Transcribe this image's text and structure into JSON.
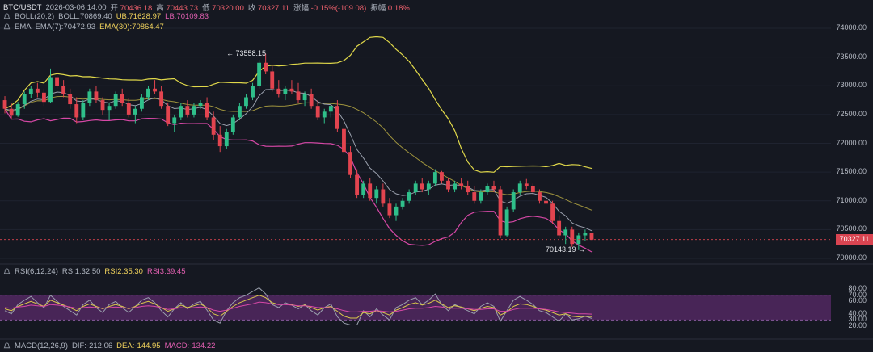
{
  "header": {
    "symbol": "BTC/USDT",
    "datetime": "2026-03-06 14:00",
    "open_label": "开",
    "open": "70436.18",
    "high_label": "高",
    "high": "70443.73",
    "low_label": "低",
    "low": "70320.00",
    "close_label": "收",
    "close": "70327.11",
    "change_label": "涨幅",
    "change": "-0.15%(-109.08)",
    "amp_label": "振幅",
    "amp": "0.18%"
  },
  "boll": {
    "label": "BOLL(20,2)",
    "boll": "BOLL:70869.40",
    "ub": "UB:71628.97",
    "lb": "LB:70109.83"
  },
  "ema": {
    "label": "EMA",
    "ema7": "EMA(7):70472.93",
    "ema30": "EMA(30):70864.47"
  },
  "rsi": {
    "label": "RSI(6,12,24)",
    "rsi1": "RSI1:32.50",
    "rsi2": "RSI2:35.30",
    "rsi3": "RSI3:39.45"
  },
  "macd": {
    "label": "MACD(12,26,9)",
    "dif": "DIF:-212.06",
    "dea": "DEA:-144.95",
    "macd": "MACD:-134.22"
  },
  "annotations": {
    "high_marker": "← 73558.15",
    "low_marker": "70143.19 →"
  },
  "last_price_tag": "70327.11",
  "colors": {
    "up": "#2fbf8a",
    "down": "#e2444f",
    "boll_band": "#e0d84a",
    "lb": "#d648a6",
    "ema7": "#9aa0ad",
    "ema30": "#d9c84a",
    "rsi_zone": "#5a2a6a",
    "background": "#151821"
  },
  "chart_data": [
    {
      "type": "candlestick",
      "title": "BTC/USDT",
      "ylim": [
        70000,
        74000
      ],
      "y_ticks": [
        "74000.00",
        "73500.00",
        "73000.00",
        "72500.00",
        "72000.00",
        "71500.00",
        "71000.00",
        "70500.00",
        "70000.00"
      ],
      "candles": [
        [
          72750,
          72820,
          72520,
          72600
        ],
        [
          72600,
          72700,
          72420,
          72480
        ],
        [
          72480,
          72720,
          72460,
          72680
        ],
        [
          72680,
          72900,
          72600,
          72850
        ],
        [
          72850,
          73000,
          72780,
          72950
        ],
        [
          72950,
          73050,
          72800,
          72880
        ],
        [
          72880,
          72950,
          72650,
          72720
        ],
        [
          72720,
          73300,
          72700,
          73150
        ],
        [
          73150,
          73250,
          72950,
          73000
        ],
        [
          73000,
          73100,
          72800,
          72850
        ],
        [
          72850,
          72950,
          72600,
          72680
        ],
        [
          72680,
          72800,
          72350,
          72450
        ],
        [
          72450,
          72750,
          72400,
          72700
        ],
        [
          72700,
          72950,
          72650,
          72900
        ],
        [
          72900,
          73000,
          72700,
          72750
        ],
        [
          72750,
          72800,
          72500,
          72580
        ],
        [
          72580,
          72700,
          72400,
          72650
        ],
        [
          72650,
          72900,
          72600,
          72850
        ],
        [
          72850,
          72950,
          72650,
          72700
        ],
        [
          72700,
          72780,
          72450,
          72500
        ],
        [
          72500,
          72650,
          72350,
          72600
        ],
        [
          72600,
          72850,
          72550,
          72800
        ],
        [
          72800,
          73000,
          72750,
          72950
        ],
        [
          72950,
          73100,
          72850,
          72900
        ],
        [
          72900,
          73000,
          72600,
          72650
        ],
        [
          72650,
          72700,
          72300,
          72350
        ],
        [
          72350,
          72500,
          72200,
          72450
        ],
        [
          72450,
          72700,
          72400,
          72650
        ],
        [
          72650,
          72750,
          72450,
          72500
        ],
        [
          72500,
          72700,
          72450,
          72650
        ],
        [
          72650,
          72750,
          72600,
          72700
        ],
        [
          72700,
          72800,
          72400,
          72450
        ],
        [
          72450,
          72550,
          72050,
          72150
        ],
        [
          72150,
          72300,
          71850,
          71950
        ],
        [
          71950,
          72250,
          71900,
          72200
        ],
        [
          72200,
          72500,
          72150,
          72450
        ],
        [
          72450,
          72700,
          72400,
          72650
        ],
        [
          72650,
          72850,
          72600,
          72800
        ],
        [
          72800,
          73050,
          72750,
          73000
        ],
        [
          73000,
          73450,
          72950,
          73400
        ],
        [
          73400,
          73558,
          73200,
          73250
        ],
        [
          73250,
          73350,
          72900,
          72950
        ],
        [
          72950,
          73100,
          72800,
          72850
        ],
        [
          72850,
          73000,
          72750,
          72950
        ],
        [
          72950,
          73100,
          72850,
          72900
        ],
        [
          72900,
          73050,
          72700,
          72750
        ],
        [
          72750,
          72900,
          72650,
          72850
        ],
        [
          72850,
          72950,
          72600,
          72650
        ],
        [
          72650,
          72750,
          72400,
          72450
        ],
        [
          72450,
          72600,
          72350,
          72550
        ],
        [
          72550,
          72700,
          72450,
          72650
        ],
        [
          72650,
          72750,
          72200,
          72250
        ],
        [
          72250,
          72400,
          71800,
          71850
        ],
        [
          71850,
          71950,
          71400,
          71450
        ],
        [
          71450,
          71550,
          71050,
          71100
        ],
        [
          71100,
          71350,
          71050,
          71300
        ],
        [
          71300,
          71400,
          71000,
          71050
        ],
        [
          71050,
          71250,
          70950,
          71200
        ],
        [
          71200,
          71300,
          70900,
          70950
        ],
        [
          70950,
          71050,
          70700,
          70750
        ],
        [
          70750,
          70950,
          70650,
          70900
        ],
        [
          70900,
          71050,
          70850,
          71000
        ],
        [
          71000,
          71200,
          70950,
          71150
        ],
        [
          71150,
          71350,
          71100,
          71300
        ],
        [
          71300,
          71400,
          71150,
          71200
        ],
        [
          71200,
          71350,
          71100,
          71300
        ],
        [
          71300,
          71550,
          71250,
          71500
        ],
        [
          71500,
          71520,
          71300,
          71350
        ],
        [
          71350,
          71400,
          71150,
          71200
        ],
        [
          71200,
          71350,
          71150,
          71300
        ],
        [
          71300,
          71400,
          71200,
          71250
        ],
        [
          71250,
          71350,
          71100,
          71150
        ],
        [
          71150,
          71250,
          70950,
          71000
        ],
        [
          71000,
          71200,
          70950,
          71150
        ],
        [
          71150,
          71300,
          71100,
          71250
        ],
        [
          71250,
          71350,
          71150,
          71200
        ],
        [
          71200,
          71250,
          70350,
          70400
        ],
        [
          70400,
          70900,
          70380,
          70850
        ],
        [
          70850,
          71200,
          70800,
          71150
        ],
        [
          71150,
          71350,
          71100,
          71300
        ],
        [
          71300,
          71380,
          71200,
          71250
        ],
        [
          71250,
          71300,
          71100,
          71150
        ],
        [
          71150,
          71200,
          70950,
          71000
        ],
        [
          71000,
          71100,
          70850,
          70950
        ],
        [
          70950,
          71000,
          70600,
          70650
        ],
        [
          70650,
          70750,
          70350,
          70400
        ],
        [
          70400,
          70550,
          70250,
          70500
        ],
        [
          70500,
          70550,
          70200,
          70250
        ],
        [
          70250,
          70450,
          70143,
          70400
        ],
        [
          70400,
          70500,
          70300,
          70436
        ],
        [
          70436,
          70443,
          70320,
          70327
        ]
      ]
    },
    {
      "type": "line",
      "title": "RSI(6,12,24)",
      "ylim": [
        20,
        80
      ],
      "y_ticks": [
        "80.00",
        "70.00",
        "60.00",
        "40.00",
        "30.00",
        "20.00"
      ],
      "series": [
        {
          "name": "RSI1",
          "values": [
            45,
            40,
            55,
            62,
            68,
            58,
            50,
            70,
            60,
            52,
            45,
            38,
            55,
            62,
            50,
            42,
            55,
            60,
            50,
            42,
            52,
            62,
            66,
            58,
            45,
            35,
            48,
            58,
            48,
            56,
            60,
            46,
            30,
            25,
            45,
            58,
            66,
            70,
            76,
            82,
            72,
            55,
            50,
            58,
            54,
            48,
            55,
            45,
            38,
            50,
            56,
            35,
            25,
            22,
            22,
            45,
            35,
            48,
            38,
            30,
            50,
            55,
            62,
            66,
            55,
            62,
            72,
            55,
            45,
            55,
            50,
            45,
            40,
            52,
            58,
            52,
            28,
            45,
            62,
            68,
            62,
            55,
            45,
            42,
            35,
            28,
            40,
            30,
            32,
            36,
            32.5
          ]
        },
        {
          "name": "RSI2",
          "values": [
            48,
            45,
            52,
            56,
            60,
            56,
            52,
            62,
            58,
            54,
            50,
            45,
            52,
            56,
            52,
            48,
            52,
            55,
            52,
            48,
            52,
            57,
            60,
            56,
            50,
            44,
            48,
            54,
            50,
            53,
            56,
            50,
            40,
            36,
            44,
            52,
            58,
            62,
            66,
            70,
            66,
            58,
            55,
            56,
            55,
            52,
            54,
            50,
            46,
            50,
            52,
            44,
            36,
            33,
            33,
            42,
            40,
            45,
            42,
            38,
            46,
            50,
            55,
            58,
            54,
            57,
            62,
            56,
            50,
            53,
            51,
            48,
            45,
            49,
            52,
            50,
            38,
            43,
            52,
            56,
            55,
            52,
            48,
            46,
            42,
            38,
            40,
            36,
            35,
            36,
            35.3
          ]
        },
        {
          "name": "RSI3",
          "values": [
            50,
            49,
            51,
            52,
            54,
            53,
            52,
            55,
            54,
            53,
            51,
            49,
            50,
            51,
            50,
            49,
            50,
            51,
            50,
            49,
            50,
            52,
            53,
            52,
            50,
            47,
            48,
            50,
            49,
            50,
            51,
            50,
            46,
            44,
            46,
            49,
            52,
            54,
            56,
            59,
            58,
            56,
            55,
            55,
            54,
            53,
            53,
            52,
            50,
            50,
            50,
            48,
            45,
            43,
            43,
            44,
            44,
            45,
            44,
            43,
            44,
            46,
            48,
            49,
            49,
            50,
            52,
            51,
            49,
            49,
            49,
            48,
            47,
            47,
            48,
            48,
            44,
            44,
            47,
            49,
            49,
            49,
            48,
            47,
            45,
            43,
            42,
            41,
            40,
            40,
            39.45
          ]
        }
      ]
    }
  ]
}
